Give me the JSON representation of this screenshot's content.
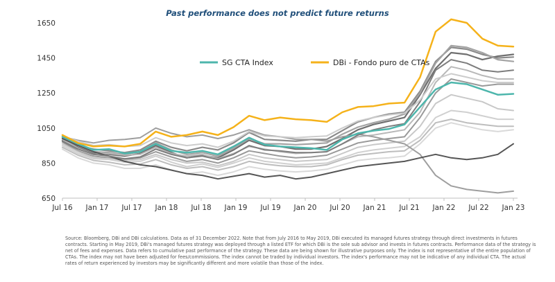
{
  "chart_data": {
    "type": "line",
    "title": "Past performance does not predict future returns",
    "xlabel": "",
    "ylabel": "",
    "ylim": [
      650,
      1700
    ],
    "yticks": [
      650,
      850,
      1050,
      1250,
      1450,
      1650
    ],
    "x_tick_labels": [
      "Jul 16",
      "Jan 17",
      "Jul 17",
      "Jan 18",
      "Jul 18",
      "Jan 19",
      "Jul 19",
      "Jan 20",
      "Jul 20",
      "Jan 21",
      "Jul 21",
      "Jan 22",
      "Jul 22",
      "Jan 23"
    ],
    "grid": false,
    "legend_position": "top-right",
    "x": [
      "Jul 16",
      "Oct 16",
      "Jan 17",
      "Apr 17",
      "Jul 17",
      "Oct 17",
      "Jan 18",
      "Apr 18",
      "Jul 18",
      "Oct 18",
      "Jan 19",
      "Apr 19",
      "Jul 19",
      "Oct 19",
      "Jan 20",
      "Apr 20",
      "Jul 20",
      "Oct 20",
      "Jan 21",
      "Apr 21",
      "Jul 21",
      "Oct 21",
      "Jan 22",
      "Apr 22",
      "Jul 22",
      "Aug 22",
      "Sep 22",
      "Oct 22",
      "Nov 22",
      "Dec 22"
    ],
    "series": [
      {
        "name": "SG CTA Index",
        "color": "#4db6ac",
        "width": 2.5,
        "values": [
          1000,
          960,
          925,
          930,
          905,
          915,
          960,
          920,
          910,
          920,
          900,
          945,
          995,
          955,
          945,
          940,
          935,
          925,
          985,
          1020,
          1035,
          1045,
          1070,
          1170,
          1270,
          1310,
          1300,
          1270,
          1240,
          1245
        ]
      },
      {
        "name": "DBi - Fondo puro de CTAs",
        "color": "#f5b21a",
        "width": 2.5,
        "values": [
          1010,
          965,
          945,
          950,
          945,
          960,
          1030,
          1000,
          1010,
          1030,
          1010,
          1055,
          1120,
          1095,
          1110,
          1100,
          1095,
          1085,
          1140,
          1170,
          1175,
          1190,
          1195,
          1340,
          1600,
          1670,
          1650,
          1560,
          1520,
          1515
        ]
      },
      {
        "values": [
          990,
          950,
          930,
          920,
          910,
          925,
          975,
          940,
          920,
          940,
          925,
          965,
          1025,
          985,
          980,
          975,
          985,
          985,
          1035,
          1085,
          1110,
          1130,
          1140,
          1260,
          1430,
          1510,
          1500,
          1470,
          1450,
          1455
        ],
        "color": "#8a8a8a",
        "width": 2.2
      },
      {
        "values": [
          980,
          940,
          905,
          900,
          890,
          905,
          950,
          910,
          880,
          895,
          880,
          925,
          980,
          950,
          945,
          930,
          930,
          945,
          990,
          1040,
          1070,
          1090,
          1110,
          1240,
          1390,
          1480,
          1470,
          1440,
          1460,
          1470
        ],
        "color": "#6f6f6f",
        "width": 2.2
      },
      {
        "values": [
          995,
          955,
          915,
          910,
          900,
          915,
          965,
          925,
          900,
          910,
          890,
          935,
          990,
          960,
          960,
          955,
          960,
          965,
          1015,
          1055,
          1080,
          1100,
          1130,
          1250,
          1420,
          1520,
          1510,
          1480,
          1440,
          1430
        ],
        "color": "#a3a3a3",
        "width": 2.2
      },
      {
        "values": [
          985,
          935,
          900,
          905,
          895,
          900,
          940,
          905,
          890,
          900,
          875,
          905,
          945,
          930,
          915,
          905,
          910,
          915,
          960,
          1000,
          1010,
          1025,
          1040,
          1140,
          1310,
          1400,
          1380,
          1350,
          1330,
          1330
        ],
        "color": "#b8b8b8",
        "width": 2.0
      },
      {
        "values": [
          970,
          920,
          890,
          880,
          870,
          880,
          915,
          885,
          860,
          870,
          850,
          880,
          920,
          905,
          890,
          880,
          885,
          895,
          930,
          965,
          980,
          990,
          1000,
          1110,
          1250,
          1330,
          1310,
          1290,
          1300,
          1300
        ],
        "color": "#999999",
        "width": 2.0
      },
      {
        "values": [
          960,
          915,
          880,
          875,
          865,
          870,
          900,
          870,
          850,
          855,
          835,
          860,
          900,
          880,
          870,
          860,
          865,
          870,
          905,
          940,
          955,
          965,
          975,
          1060,
          1190,
          1240,
          1220,
          1200,
          1160,
          1150
        ],
        "color": "#c8c8c8",
        "width": 2.0
      },
      {
        "values": [
          950,
          905,
          875,
          870,
          855,
          860,
          890,
          855,
          830,
          845,
          825,
          850,
          880,
          860,
          850,
          840,
          845,
          850,
          880,
          910,
          925,
          935,
          945,
          1000,
          1110,
          1150,
          1140,
          1120,
          1100,
          1100
        ],
        "color": "#d0d0d0",
        "width": 2.0
      },
      {
        "values": [
          940,
          895,
          865,
          855,
          840,
          845,
          870,
          840,
          820,
          830,
          810,
          830,
          860,
          845,
          835,
          830,
          830,
          840,
          870,
          895,
          905,
          915,
          920,
          980,
          1080,
          1100,
          1080,
          1070,
          1060,
          1060
        ],
        "color": "#bdbdbd",
        "width": 2.0
      },
      {
        "values": [
          930,
          880,
          850,
          840,
          820,
          820,
          840,
          810,
          790,
          800,
          780,
          800,
          830,
          815,
          805,
          800,
          805,
          815,
          840,
          865,
          875,
          880,
          890,
          960,
          1050,
          1080,
          1060,
          1040,
          1030,
          1040
        ],
        "color": "#d9d9d9",
        "width": 2.0
      },
      {
        "values": [
          1000,
          980,
          965,
          980,
          985,
          995,
          1050,
          1020,
          1000,
          1010,
          990,
          1010,
          1040,
          1010,
          1000,
          985,
          985,
          975,
          1000,
          1015,
          1000,
          980,
          960,
          900,
          780,
          720,
          700,
          690,
          680,
          690
        ],
        "color": "#9e9e9e",
        "width": 2.0
      },
      {
        "values": [
          990,
          950,
          915,
          890,
          860,
          840,
          830,
          810,
          790,
          780,
          760,
          775,
          790,
          770,
          780,
          760,
          770,
          790,
          810,
          830,
          840,
          850,
          860,
          880,
          900,
          880,
          870,
          880,
          900,
          960
        ],
        "color": "#555555",
        "width": 2.0
      },
      {
        "values": [
          975,
          930,
          900,
          890,
          875,
          885,
          930,
          900,
          880,
          890,
          870,
          900,
          950,
          925,
          920,
          910,
          910,
          915,
          960,
          1010,
          1040,
          1060,
          1075,
          1200,
          1380,
          1440,
          1420,
          1380,
          1370,
          1380
        ],
        "color": "#7d7d7d",
        "width": 2.0
      },
      {
        "values": [
          1005,
          975,
          950,
          955,
          945,
          950,
          995,
          965,
          950,
          960,
          940,
          975,
          1030,
          1005,
          1000,
          995,
          1000,
          1005,
          1050,
          1090,
          1110,
          1125,
          1135,
          1210,
          1330,
          1360,
          1340,
          1320,
          1310,
          1310
        ],
        "color": "#cccccc",
        "width": 2.0
      }
    ]
  },
  "source_note": "Source: Bloomberg, DBi and DBi calculations. Data as of 31 December 2022. Note that from July 2016 to May 2019, DBi executed its managed futures strategy through direct investments in futures contracts. Starting in May 2019, DBi's managed futures strategy was deployed through a listed ETF for which DBi is the sole sub advisor and invests in futures contracts. Performance data of the strategy is net of fees and expenses. Data refers to cumulative past performance of the strategy. These data are being shown for illustrative purposes only. The index is not representative of the entire population of CTAs. The index may not have been adjusted for fees/commissions. The index cannot be traded by individual investors. The index's performance may not be indicative of any individual CTA. The actual rates of return experienced by investors may be significantly different and more volatile than those of the index.",
  "colors": {
    "axis": "#bfbfbf",
    "title": "#1f4e79"
  }
}
